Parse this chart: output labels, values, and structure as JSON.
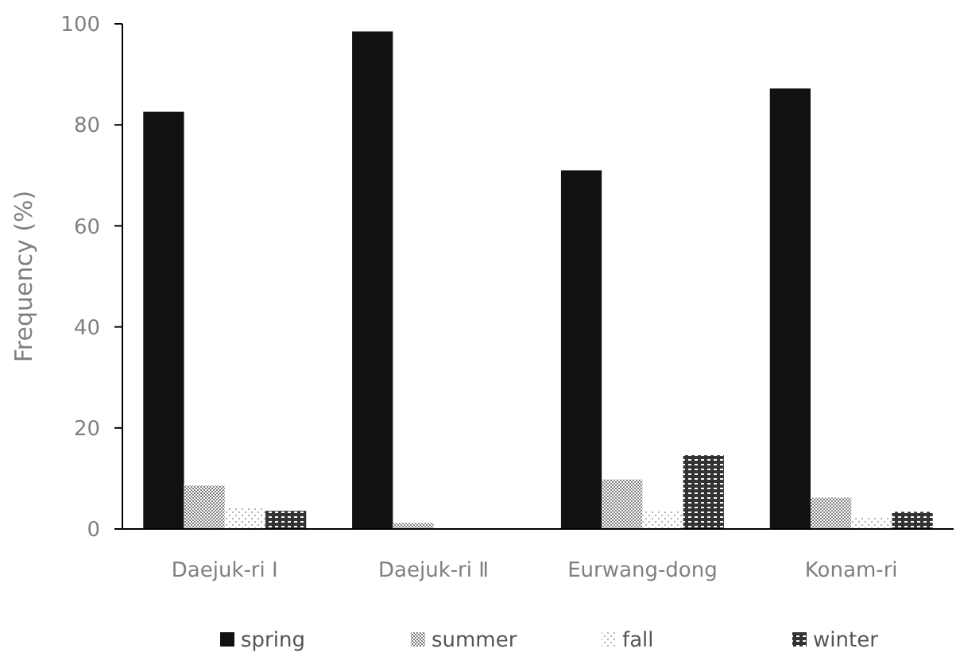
{
  "chart_data": {
    "type": "bar",
    "ylabel": "Frequency (%)",
    "categories": [
      "Daejuk-ri Ⅰ",
      "Daejuk-ri Ⅱ",
      "Eurwang-dong",
      "Konam-ri"
    ],
    "series": [
      {
        "name": "spring",
        "color": "#111111",
        "values": [
          82.6,
          98.5,
          71,
          87.2
        ]
      },
      {
        "name": "summer",
        "color": "#808080",
        "values": [
          8.6,
          1.2,
          9.8,
          6.2
        ]
      },
      {
        "name": "fall",
        "color": "#b0b0b0",
        "values": [
          4.4,
          0,
          3.6,
          2.5
        ]
      },
      {
        "name": "winter",
        "color": "#333333",
        "values": [
          3.6,
          0,
          14.6,
          3.4
        ]
      }
    ],
    "ylim": [
      0,
      100
    ],
    "yticks": [
      0,
      20,
      40,
      60,
      80,
      100
    ],
    "grid": false,
    "legend": "bottom"
  }
}
